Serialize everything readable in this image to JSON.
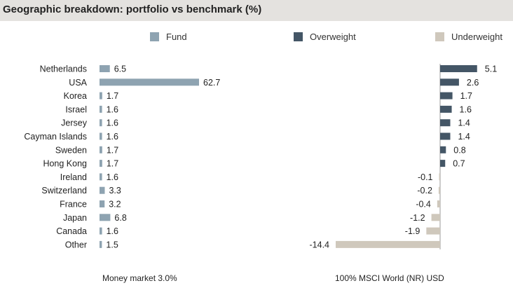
{
  "header": {
    "title": "Geographic breakdown: portfolio vs benchmark (%)"
  },
  "legend": [
    {
      "label": "Fund",
      "color": "#8ea3b1"
    },
    {
      "label": "Overweight",
      "color": "#445666"
    },
    {
      "label": "Underweight",
      "color": "#cfc8bc"
    }
  ],
  "footnotes": {
    "left": "Money market 3.0%",
    "right": "100% MSCI World (NR) USD"
  },
  "chart_data": [
    {
      "type": "bar",
      "orientation": "horizontal",
      "categories": [
        "Netherlands",
        "USA",
        "Korea",
        "Israel",
        "Jersey",
        "Cayman Islands",
        "Sweden",
        "Hong Kong",
        "Ireland",
        "Switzerland",
        "France",
        "Japan",
        "Canada",
        "Other"
      ],
      "series": [
        {
          "name": "Fund",
          "color": "#8ea3b1",
          "values": [
            6.5,
            62.7,
            1.7,
            1.6,
            1.6,
            1.6,
            1.7,
            1.7,
            1.6,
            3.3,
            3.2,
            6.8,
            1.6,
            1.5
          ],
          "labels": [
            "6.5",
            "62.7",
            "1.7",
            "1.6",
            "1.6",
            "1.6",
            "1.7",
            "1.7",
            "1.6",
            "3.3",
            "3.2",
            "6.8",
            "1.6",
            "1.5"
          ]
        }
      ],
      "xlim": [
        0,
        62.7
      ]
    },
    {
      "type": "bar",
      "orientation": "horizontal",
      "categories": [
        "Netherlands",
        "USA",
        "Korea",
        "Israel",
        "Jersey",
        "Cayman Islands",
        "Sweden",
        "Hong Kong",
        "Ireland",
        "Switzerland",
        "France",
        "Japan",
        "Canada",
        "Other"
      ],
      "series": [
        {
          "name": "Overweight / Underweight",
          "values": [
            5.1,
            2.6,
            1.7,
            1.6,
            1.4,
            1.4,
            0.8,
            0.7,
            -0.1,
            -0.2,
            -0.4,
            -1.2,
            -1.9,
            -14.4
          ],
          "labels": [
            "5.1",
            "2.6",
            "1.7",
            "1.6",
            "1.4",
            "1.4",
            "0.8",
            "0.7",
            "-0.1",
            "-0.2",
            "-0.4",
            "-1.2",
            "-1.9",
            "-14.4"
          ],
          "positive_color": "#445666",
          "negative_color": "#cfc8bc"
        }
      ],
      "xlim": [
        -14.4,
        5.1
      ]
    }
  ]
}
